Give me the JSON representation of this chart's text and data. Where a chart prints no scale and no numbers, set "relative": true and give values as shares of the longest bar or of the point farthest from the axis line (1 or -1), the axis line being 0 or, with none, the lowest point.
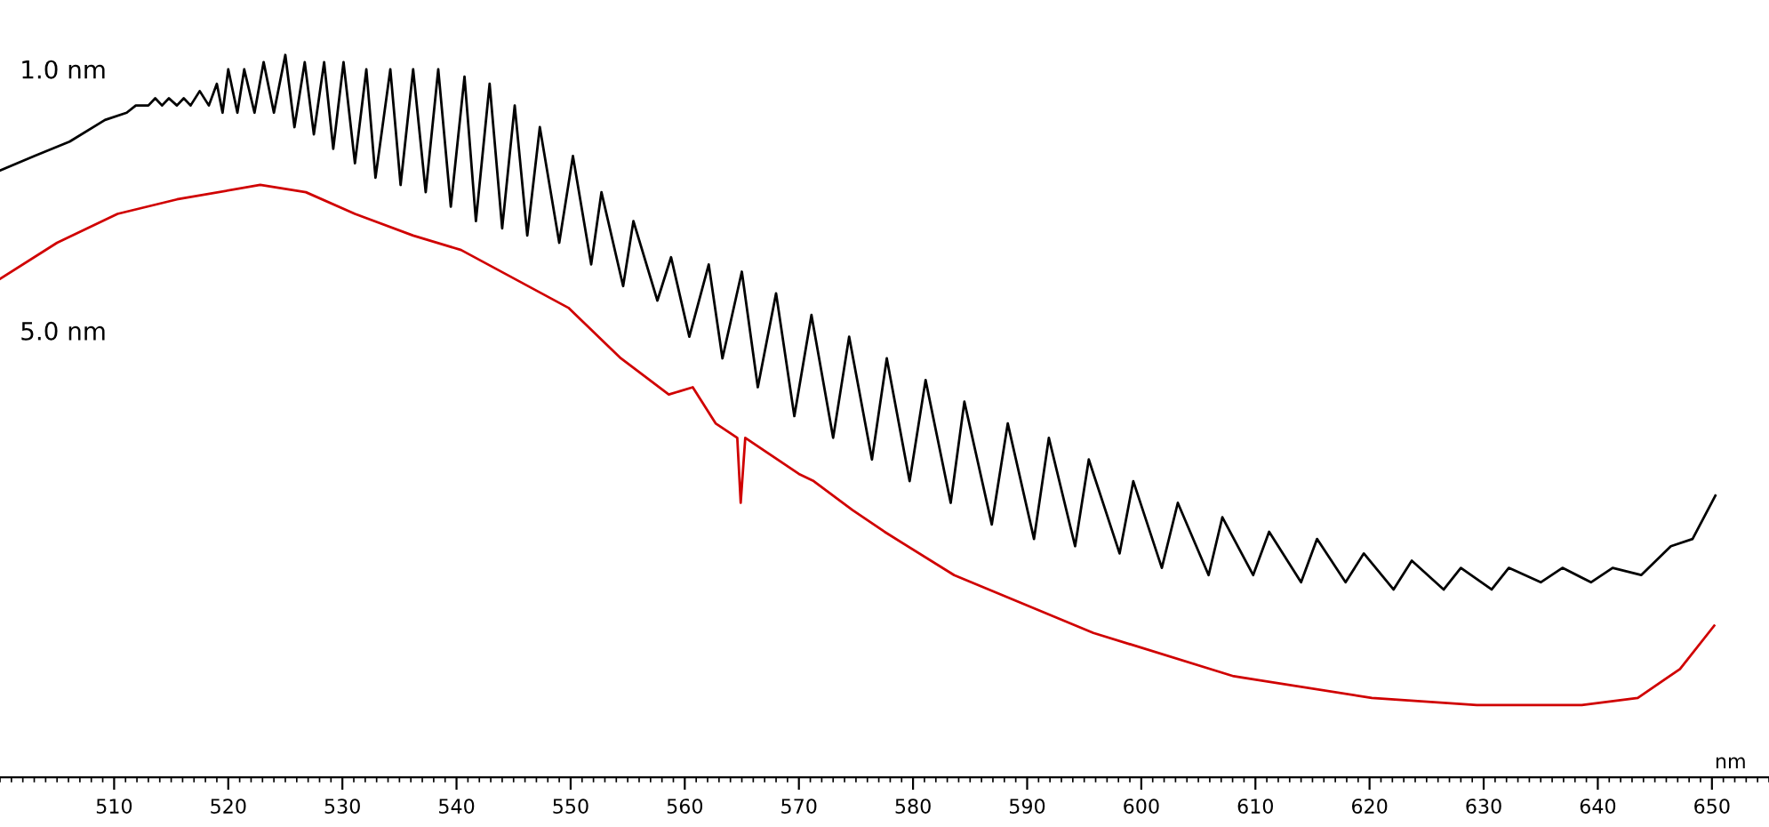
{
  "chart_data": {
    "type": "line",
    "relative": true,
    "xlabel": "nm",
    "xlim": [
      500,
      655
    ],
    "xticks": [
      510,
      520,
      530,
      540,
      550,
      560,
      570,
      580,
      590,
      600,
      610,
      620,
      630,
      640,
      650
    ],
    "legend": false,
    "grid": false,
    "marker": "none",
    "line_style": "solid",
    "series": [
      {
        "name": "1.0 nm",
        "color": "#000000",
        "x": [
          500.0,
          503.0,
          506.1,
          509.2,
          511.1,
          511.9,
          512.3,
          513.0,
          513.6,
          514.2,
          514.8,
          515.5,
          516.1,
          516.7,
          517.5,
          518.3,
          519.0,
          519.5,
          520.0,
          520.8,
          521.4,
          522.3,
          523.1,
          524.0,
          525.0,
          525.8,
          526.7,
          527.5,
          528.4,
          529.2,
          530.1,
          531.1,
          532.1,
          532.9,
          534.2,
          535.1,
          536.2,
          537.3,
          538.4,
          539.5,
          540.7,
          541.7,
          542.9,
          544.0,
          545.1,
          546.2,
          547.3,
          549.0,
          550.2,
          551.8,
          552.7,
          554.6,
          555.5,
          557.6,
          558.8,
          560.4,
          562.1,
          563.3,
          565.0,
          566.4,
          568.0,
          569.6,
          571.1,
          573.0,
          574.4,
          576.4,
          577.7,
          579.7,
          581.1,
          583.3,
          584.5,
          586.9,
          588.3,
          590.6,
          591.9,
          594.2,
          595.4,
          598.1,
          599.3,
          601.8,
          603.2,
          605.9,
          607.1,
          609.8,
          611.2,
          614.0,
          615.4,
          617.9,
          619.5,
          622.1,
          623.7,
          626.5,
          628.0,
          630.7,
          632.2,
          635.0,
          636.9,
          639.4,
          641.3,
          643.8,
          646.4,
          648.3,
          650.3
        ],
        "values": [
          0.84,
          0.86,
          0.88,
          0.91,
          0.92,
          0.93,
          0.93,
          0.93,
          0.94,
          0.93,
          0.94,
          0.93,
          0.94,
          0.93,
          0.95,
          0.93,
          0.96,
          0.92,
          0.98,
          0.92,
          0.98,
          0.92,
          0.99,
          0.92,
          1.0,
          0.9,
          0.99,
          0.89,
          0.99,
          0.87,
          0.99,
          0.85,
          0.98,
          0.83,
          0.98,
          0.82,
          0.98,
          0.81,
          0.98,
          0.79,
          0.97,
          0.77,
          0.96,
          0.76,
          0.93,
          0.75,
          0.9,
          0.74,
          0.86,
          0.71,
          0.81,
          0.68,
          0.77,
          0.66,
          0.72,
          0.61,
          0.71,
          0.58,
          0.7,
          0.54,
          0.67,
          0.5,
          0.64,
          0.47,
          0.61,
          0.44,
          0.58,
          0.41,
          0.55,
          0.38,
          0.52,
          0.35,
          0.49,
          0.33,
          0.47,
          0.32,
          0.44,
          0.31,
          0.41,
          0.29,
          0.38,
          0.28,
          0.36,
          0.28,
          0.34,
          0.27,
          0.33,
          0.27,
          0.31,
          0.26,
          0.3,
          0.26,
          0.29,
          0.26,
          0.29,
          0.27,
          0.29,
          0.27,
          0.29,
          0.28,
          0.32,
          0.33,
          0.39
        ]
      },
      {
        "name": "5.0 nm",
        "color": "#d00000",
        "x": [
          500.0,
          505.0,
          510.3,
          515.5,
          522.8,
          526.8,
          531.1,
          536.2,
          540.4,
          545.1,
          549.8,
          554.4,
          558.6,
          560.7,
          562.7,
          564.6,
          564.9,
          565.3,
          570.0,
          571.3,
          574.7,
          577.5,
          583.6,
          595.8,
          608.1,
          620.2,
          629.4,
          638.6,
          643.5,
          647.2,
          650.2
        ],
        "values": [
          0.69,
          0.74,
          0.78,
          0.8,
          0.82,
          0.81,
          0.78,
          0.75,
          0.73,
          0.69,
          0.65,
          0.58,
          0.53,
          0.54,
          0.49,
          0.47,
          0.38,
          0.47,
          0.42,
          0.41,
          0.37,
          0.34,
          0.28,
          0.2,
          0.14,
          0.11,
          0.1,
          0.1,
          0.11,
          0.15,
          0.21
        ]
      }
    ]
  }
}
